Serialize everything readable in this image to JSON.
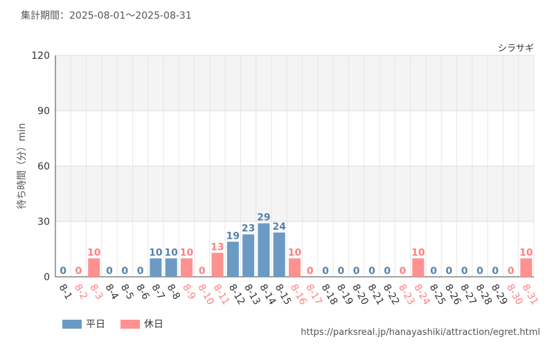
{
  "header": {
    "period": "集計期間：2025-08-01～2025-08-31"
  },
  "colors": {
    "weekday": "#6b9ac4",
    "holiday": "#ff9190",
    "grid": "#dddddd",
    "band": "#f4f4f4",
    "weekday_label": "#5582ad",
    "holiday_label": "#ff8080"
  },
  "legend": {
    "weekday": "平日",
    "holiday": "休日"
  },
  "source": "https://parksreal.jp/hanayashiki/attraction/egret.html",
  "chart_data": {
    "type": "bar",
    "title": "シラサギ",
    "ylabel": "待ち時間（分）min",
    "ylim": [
      0,
      120
    ],
    "yticks": [
      0,
      30,
      60,
      90,
      120
    ],
    "categories": [
      "8-1",
      "8-2",
      "8-3",
      "8-4",
      "8-5",
      "8-6",
      "8-7",
      "8-8",
      "8-9",
      "8-10",
      "8-11",
      "8-12",
      "8-13",
      "8-14",
      "8-15",
      "8-16",
      "8-17",
      "8-18",
      "8-19",
      "8-20",
      "8-21",
      "8-22",
      "8-23",
      "8-24",
      "8-25",
      "8-26",
      "8-27",
      "8-28",
      "8-29",
      "8-30",
      "8-31"
    ],
    "values": [
      0,
      0,
      10,
      0,
      0,
      0,
      10,
      10,
      10,
      0,
      13,
      19,
      23,
      29,
      24,
      10,
      0,
      0,
      0,
      0,
      0,
      0,
      0,
      10,
      0,
      0,
      0,
      0,
      0,
      0,
      10
    ],
    "day_type": [
      "weekday",
      "holiday",
      "holiday",
      "weekday",
      "weekday",
      "weekday",
      "weekday",
      "weekday",
      "holiday",
      "holiday",
      "holiday",
      "weekday",
      "weekday",
      "weekday",
      "weekday",
      "holiday",
      "holiday",
      "weekday",
      "weekday",
      "weekday",
      "weekday",
      "weekday",
      "holiday",
      "holiday",
      "weekday",
      "weekday",
      "weekday",
      "weekday",
      "weekday",
      "holiday",
      "holiday"
    ],
    "series": [
      {
        "name": "平日"
      },
      {
        "name": "休日"
      }
    ],
    "legend_position": "bottom-left",
    "grid": true
  }
}
